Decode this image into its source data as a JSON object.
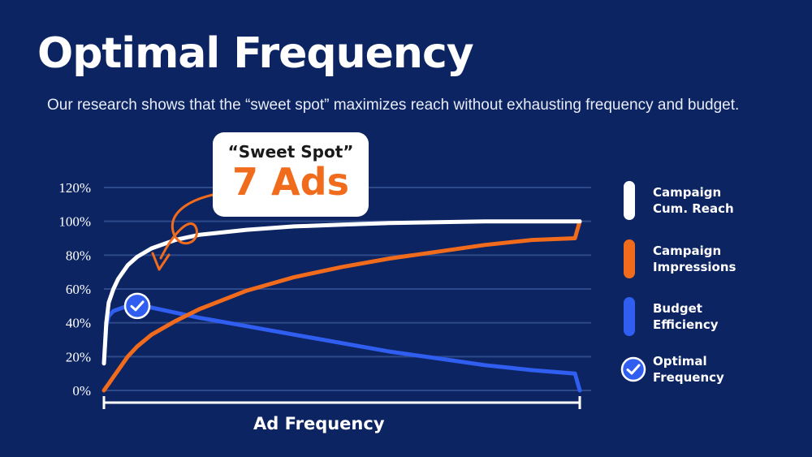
{
  "title": "Optimal Frequency",
  "subtitle": "Our research shows that the “sweet spot” maximizes reach without exhausting frequency and budget.",
  "callout": {
    "label": "“Sweet Spot”",
    "value": "7 Ads"
  },
  "legend": [
    {
      "label_line1": "Campaign",
      "label_line2": "Cum. Reach",
      "color": "#ffffff"
    },
    {
      "label_line1": "Campaign",
      "label_line2": "Impressions",
      "color": "#f16b1c"
    },
    {
      "label_line1": "Budget",
      "label_line2": "Efficiency",
      "color": "#2f5ef0"
    },
    {
      "label_line1": "Optimal",
      "label_line2": "Frequency",
      "color": "#2f5ef0"
    }
  ],
  "colors": {
    "background": "#0c2461",
    "grid": "#2e4a8a",
    "reach": "#ffffff",
    "impressions": "#f16b1c",
    "efficiency": "#2f5ef0",
    "accent": "#f16b1c"
  },
  "chart_data": {
    "type": "line",
    "xlabel": "Ad Frequency",
    "ylabel": "",
    "ylim": [
      0,
      120
    ],
    "yticks": [
      "0%",
      "20%",
      "40%",
      "60%",
      "80%",
      "100%",
      "120%"
    ],
    "x": [
      0,
      0.5,
      1,
      2,
      3,
      5,
      7,
      10,
      15,
      20,
      30,
      40,
      50,
      60,
      70,
      80,
      90,
      99,
      100
    ],
    "series": [
      {
        "name": "Campaign Cum. Reach",
        "color": "#ffffff",
        "values": [
          16,
          40,
          52,
          60,
          66,
          74,
          79,
          84,
          89,
          92,
          95,
          97,
          98,
          99,
          99.5,
          100,
          100,
          100,
          100
        ]
      },
      {
        "name": "Campaign Impressions",
        "color": "#f16b1c",
        "values": [
          0,
          2,
          4,
          8,
          12,
          20,
          26,
          33,
          41,
          48,
          59,
          67,
          73,
          78,
          82,
          86,
          89,
          90,
          100
        ]
      },
      {
        "name": "Budget Efficiency",
        "color": "#2f5ef0",
        "values": [
          16,
          38,
          44,
          47,
          48,
          50,
          50,
          49,
          46,
          43,
          38,
          33,
          28,
          23,
          19,
          15,
          12,
          10,
          0
        ]
      }
    ],
    "markers": [
      {
        "name": "Optimal Frequency",
        "x": 7,
        "y": 50
      }
    ],
    "grid": true,
    "legend": "right"
  }
}
